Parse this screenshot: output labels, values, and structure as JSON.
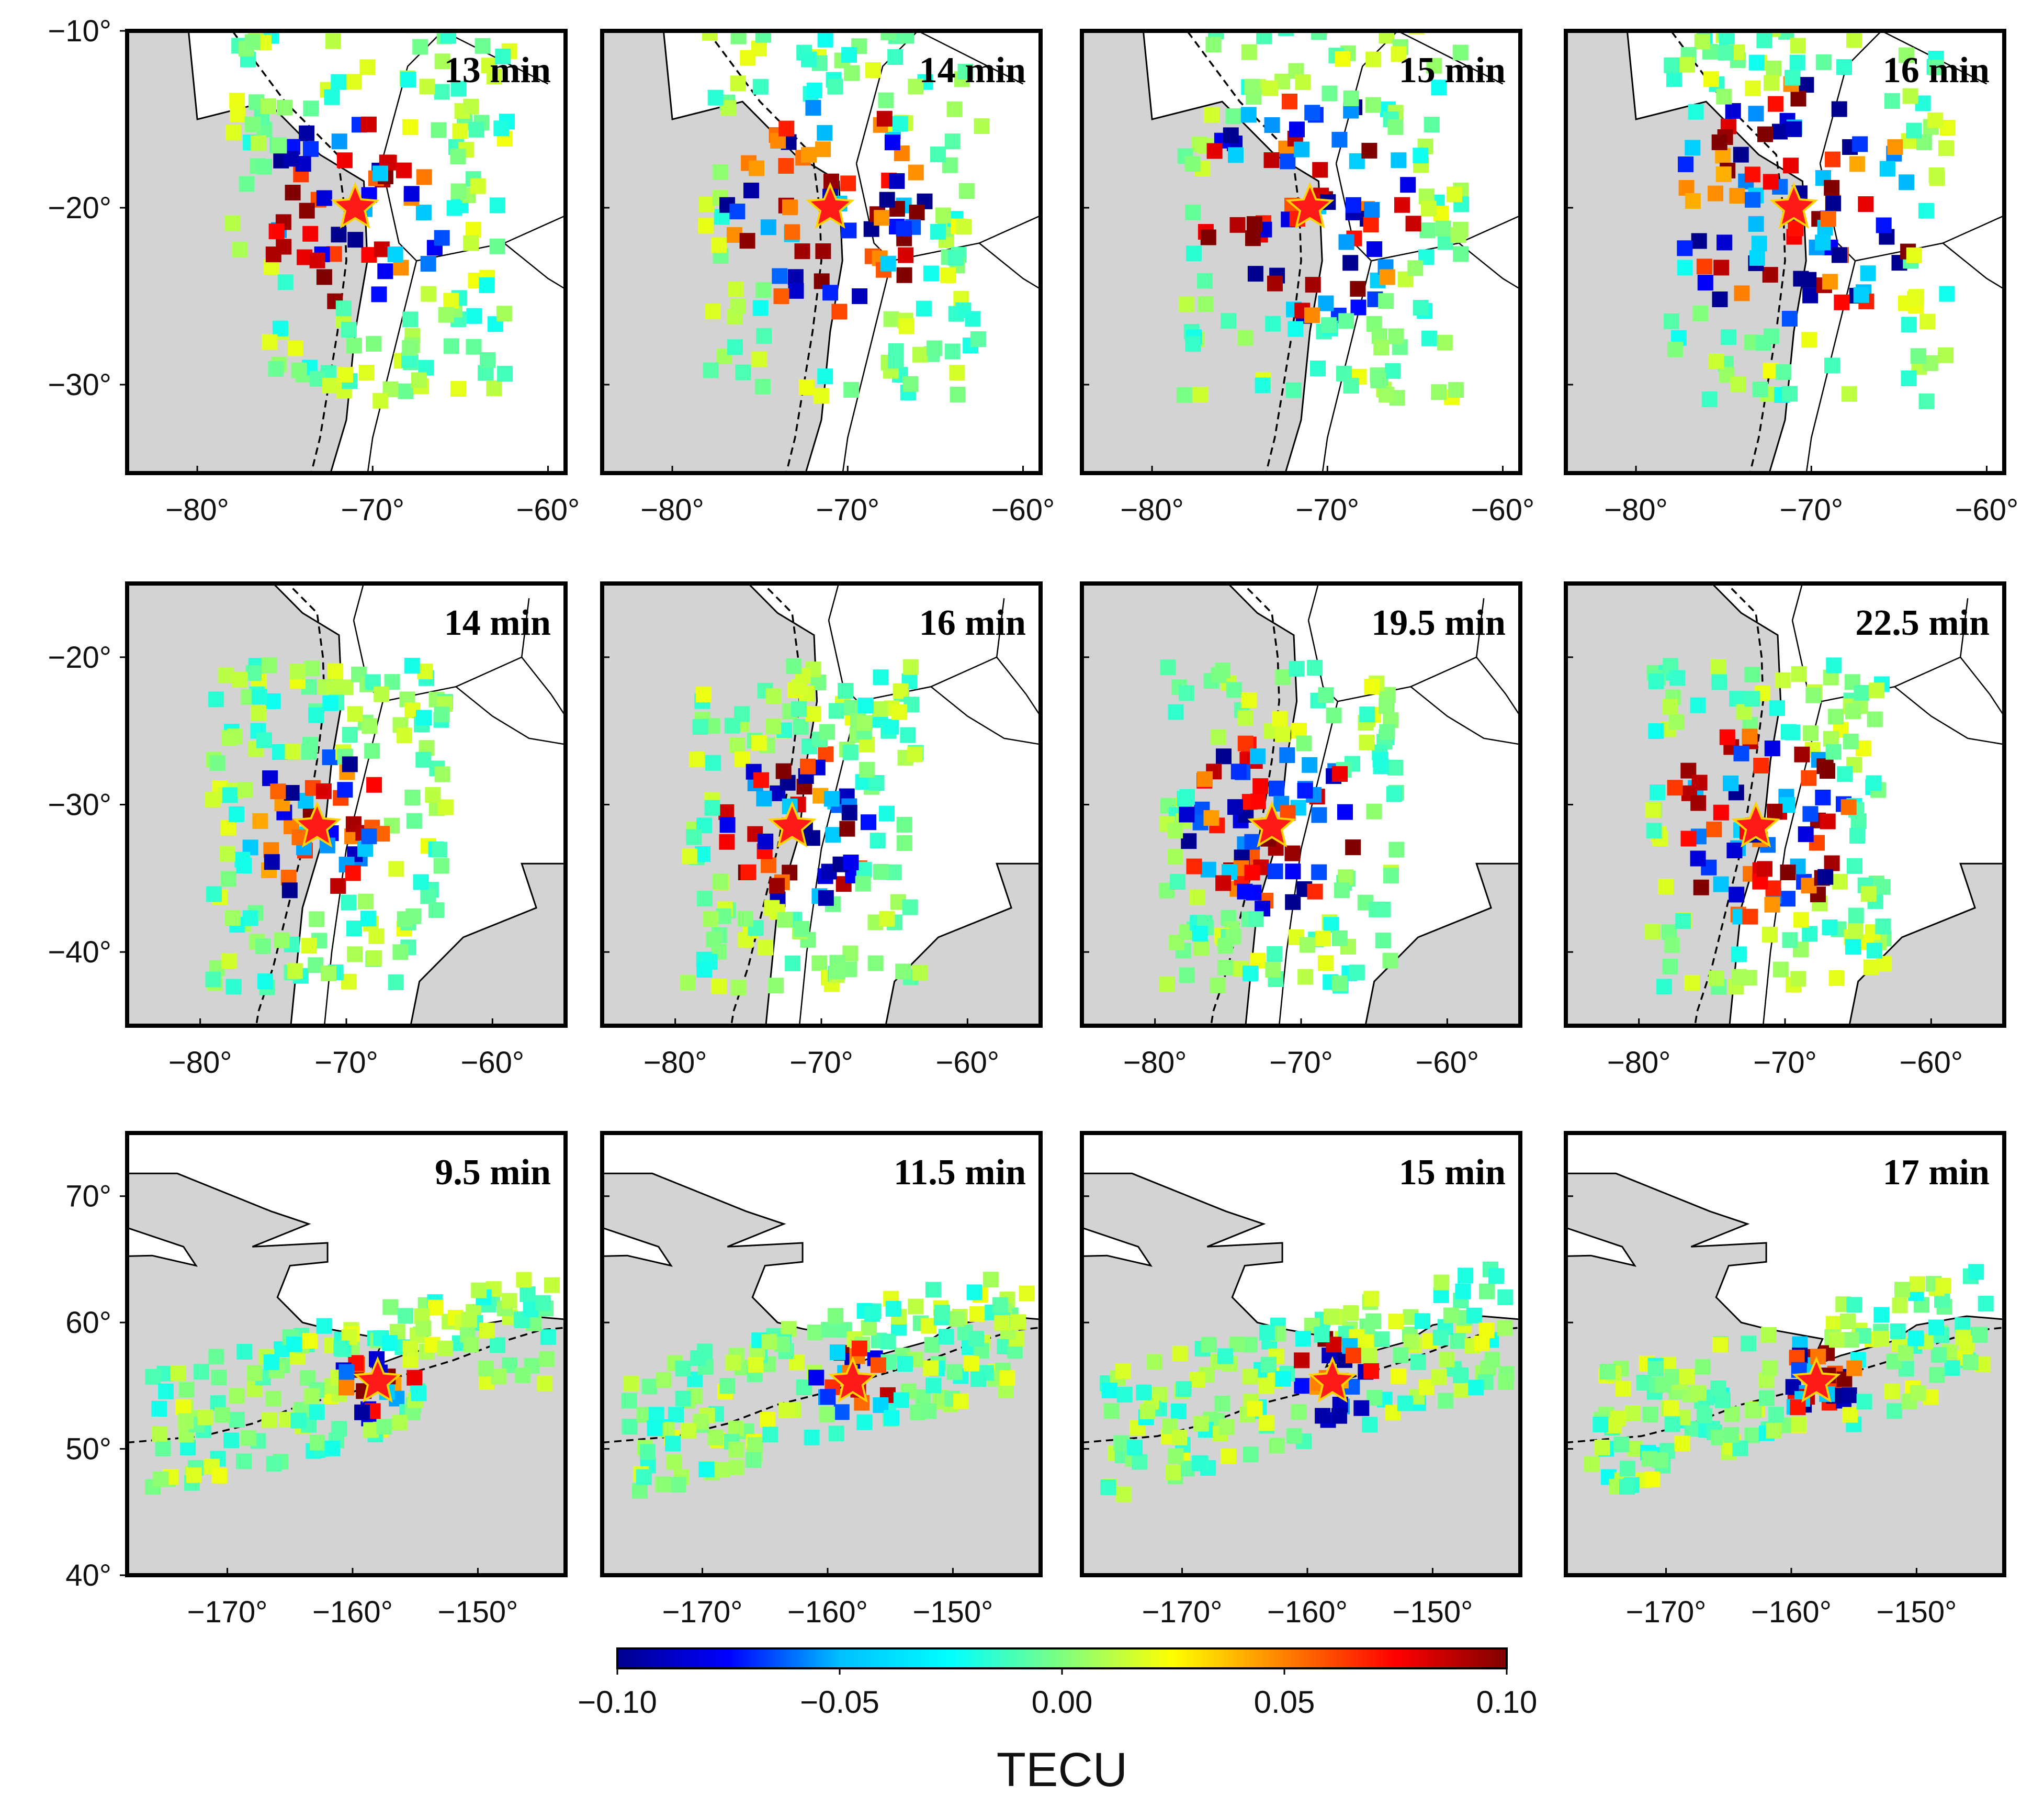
{
  "chart_data": {
    "type": "scatter",
    "description_units": "TEC perturbation (TECU)",
    "colormap": [
      "#00008f",
      "#0000ff",
      "#00bfff",
      "#00ffff",
      "#7fff7f",
      "#ffff00",
      "#ff8000",
      "#ff0000",
      "#800000"
    ],
    "colorbar": {
      "range": [
        -0.1,
        0.1
      ],
      "ticks": [
        "-0.10",
        "-0.05",
        "0.00",
        "0.05",
        "0.10"
      ],
      "title": "TECU"
    },
    "rows": [
      {
        "name": "row-1",
        "xlim": [
          -84,
          -59
        ],
        "ylim": [
          -35,
          -10
        ],
        "xticks": [
          -80,
          -70,
          -60
        ],
        "xtick_labels": [
          "−80°",
          "−70°",
          "−60°"
        ],
        "yticks": [
          -10,
          -20,
          -30
        ],
        "ytick_labels": [
          "−10°",
          "−20°",
          "−30°"
        ],
        "epicenter": [
          -71,
          -20
        ],
        "panels": [
          {
            "time": "13 min",
            "seed": 11,
            "spread": 5.5
          },
          {
            "time": "14 min",
            "seed": 23,
            "spread": 6.0
          },
          {
            "time": "15 min",
            "seed": 37,
            "spread": 6.5
          },
          {
            "time": "16 min",
            "seed": 41,
            "spread": 7.0
          }
        ]
      },
      {
        "name": "row-2",
        "xlim": [
          -85,
          -55
        ],
        "ylim": [
          -45,
          -15
        ],
        "xticks": [
          -80,
          -70,
          -60
        ],
        "xtick_labels": [
          "−80°",
          "−70°",
          "−60°"
        ],
        "yticks": [
          -20,
          -30,
          -40
        ],
        "ytick_labels": [
          "−20°",
          "−30°",
          "−40°"
        ],
        "epicenter": [
          -72,
          -31.5
        ],
        "panels": [
          {
            "time": "14 min",
            "seed": 53,
            "spread": 5.0
          },
          {
            "time": "16 min",
            "seed": 61,
            "spread": 5.5
          },
          {
            "time": "19.5 min",
            "seed": 71,
            "spread": 6.0
          },
          {
            "time": "22.5 min",
            "seed": 83,
            "spread": 6.5
          }
        ]
      },
      {
        "name": "row-3",
        "xlim": [
          -178,
          -143
        ],
        "ylim": [
          40,
          75
        ],
        "xticks": [
          -170,
          -160,
          -150
        ],
        "xtick_labels": [
          "−170°",
          "−160°",
          "−150°"
        ],
        "yticks": [
          70,
          60,
          50,
          40
        ],
        "ytick_labels": [
          "70°",
          "60°",
          "50°",
          "40°"
        ],
        "epicenter": [
          -158,
          55.3
        ],
        "panels": [
          {
            "time": "9.5 min",
            "seed": 97,
            "spread": 3.0
          },
          {
            "time": "11.5 min",
            "seed": 101,
            "spread": 3.0
          },
          {
            "time": "15 min",
            "seed": 113,
            "spread": 3.5
          },
          {
            "time": "17 min",
            "seed": 127,
            "spread": 3.5
          }
        ]
      }
    ]
  }
}
